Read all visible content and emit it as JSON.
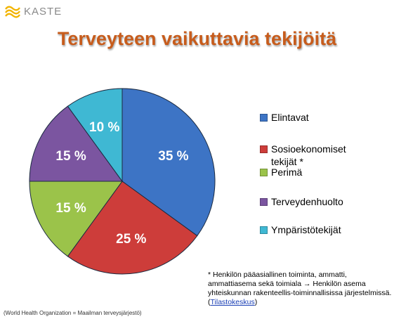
{
  "logo": {
    "text": "KASTE"
  },
  "title": "Terveyteen vaikuttavia tekijöitä",
  "chart_data": {
    "type": "pie",
    "title": "Terveyteen vaikuttavia tekijöitä",
    "slices": [
      {
        "label": "Elintavat",
        "value": 35,
        "display": "35 %",
        "color": "#3d74c5"
      },
      {
        "label": "Sosioekonomiset\ntekijät *",
        "value": 25,
        "display": "25 %",
        "color": "#cd3d3a"
      },
      {
        "label": "Perimä",
        "value": 15,
        "display": "15 %",
        "color": "#9bc34a"
      },
      {
        "label": "Terveydenhuolto",
        "value": 15,
        "display": "15 %",
        "color": "#7b55a0"
      },
      {
        "label": "Ympäristötekijät",
        "value": 10,
        "display": "10 %",
        "color": "#3fb8d3"
      }
    ],
    "legend_position": "right"
  },
  "footnote": {
    "text": "* Henkilön pääasiallinen toiminta, ammatti, ammattiasema sekä toimiala → Henkilön asema yhteiskunnan rakenteellis-toiminnallisissa järjestelmissä. (",
    "link": "Tilastokeskus",
    "end": ")"
  },
  "source": "(World Health Organization = Maailman terveysjärjestö)"
}
